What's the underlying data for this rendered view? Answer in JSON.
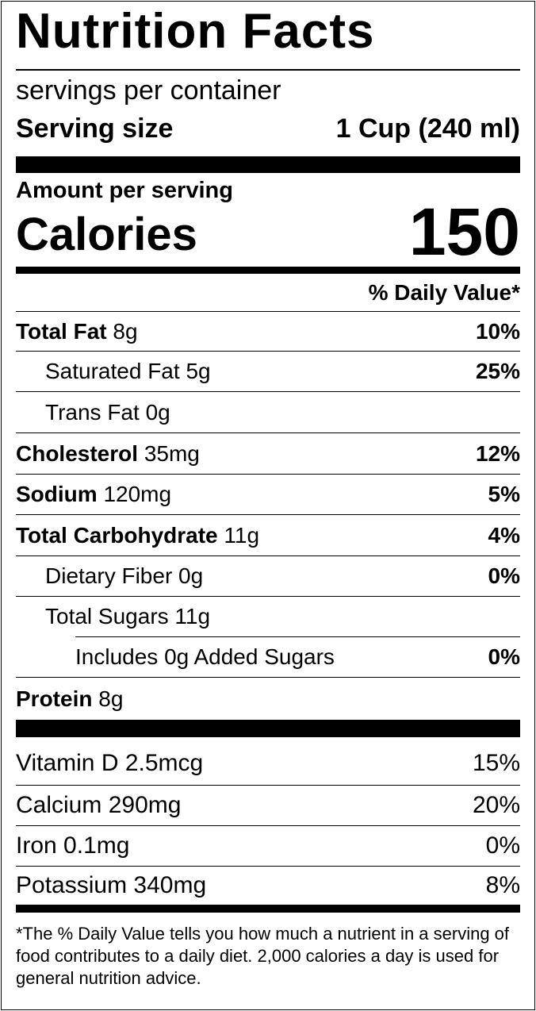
{
  "title": "Nutrition Facts",
  "servings": "servings per container",
  "serving_size": {
    "label": "Serving size",
    "value": "1 Cup (240 ml)"
  },
  "amount_per_serving": "Amount per serving",
  "calories": {
    "label": "Calories",
    "value": 150
  },
  "daily_value_header": "% Daily Value*",
  "nutrients": [
    {
      "name": "Total Fat",
      "amount": "8g",
      "dv": "10%"
    },
    {
      "name": "Saturated Fat",
      "amount": "5g",
      "dv": "25%"
    },
    {
      "name": "Trans Fat",
      "amount": "0g"
    },
    {
      "name": "Cholesterol",
      "amount": "35mg",
      "dv": "12%"
    },
    {
      "name": "Sodium",
      "amount": "120mg",
      "dv": "5%"
    },
    {
      "name": "Total Carbohydrate",
      "amount": "11g",
      "dv": "4%"
    },
    {
      "name": "Dietary Fiber",
      "amount": "0g",
      "dv": "0%"
    },
    {
      "name": "Total Sugars",
      "amount": "11g"
    },
    {
      "name": "Includes 0g Added Sugars",
      "dv": "0%"
    },
    {
      "name": "Protein",
      "amount": "8g"
    }
  ],
  "vitamins": [
    {
      "name": "Vitamin D",
      "amount": "2.5mcg",
      "dv": "15%"
    },
    {
      "name": "Calcium",
      "amount": "290mg",
      "dv": "20%"
    },
    {
      "name": "Iron",
      "amount": "0.1mg",
      "dv": "0%"
    },
    {
      "name": "Potassium",
      "amount": "340mg",
      "dv": "8%"
    }
  ],
  "footnote": "*The % Daily Value tells you how much a nutrient in a serving of food contributes to a daily diet. 2,000 calories a day is used for general nutrition advice."
}
